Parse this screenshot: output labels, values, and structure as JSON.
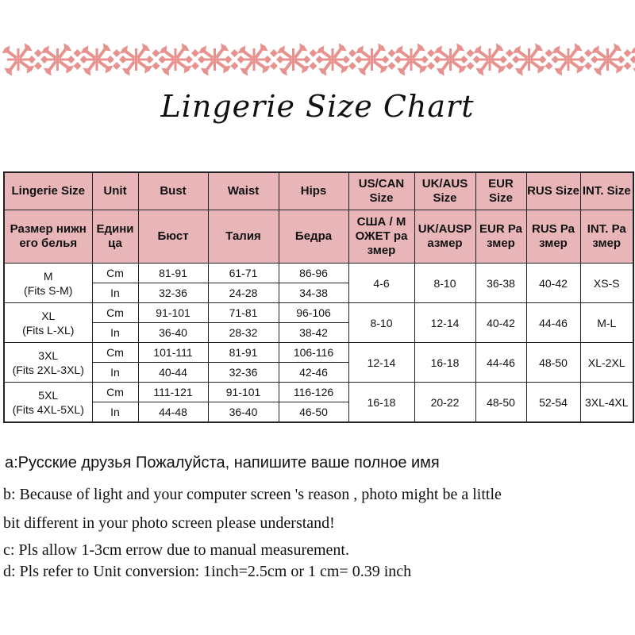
{
  "colors": {
    "header_bg": "#e8b5b8",
    "border_pattern": "#e8928f"
  },
  "title": "Lingerie Size  Chart",
  "table": {
    "header_en": [
      "Lingerie Size",
      "Unit",
      "Bust",
      "Waist",
      "Hips",
      "US/CAN Size",
      "UK/AUS Size",
      "EUR Size",
      "RUS Size",
      "INT. Size"
    ],
    "header_ru": [
      "Размер нижн его белья",
      "Едини ца",
      "Бюст",
      "Талия",
      "Бедра",
      "США / М ОЖЕТ ра змер",
      "UK/AUSP азмер",
      "EUR Ра змер",
      "RUS Ра змер",
      "INT. Ра змер"
    ],
    "rows": [
      {
        "size": "M",
        "fits": "(Fits S-M)",
        "cm": [
          "81-91",
          "61-71",
          "86-96"
        ],
        "in": [
          "32-36",
          "24-28",
          "34-38"
        ],
        "us": "4-6",
        "uk": "8-10",
        "eur": "36-38",
        "rus": "40-42",
        "int": "XS-S"
      },
      {
        "size": "XL",
        "fits": "(Fits L-XL)",
        "cm": [
          "91-101",
          "71-81",
          "96-106"
        ],
        "in": [
          "36-40",
          "28-32",
          "38-42"
        ],
        "us": "8-10",
        "uk": "12-14",
        "eur": "40-42",
        "rus": "44-46",
        "int": "M-L"
      },
      {
        "size": "3XL",
        "fits": "(Fits 2XL-3XL)",
        "cm": [
          "101-111",
          "81-91",
          "106-116"
        ],
        "in": [
          "40-44",
          "32-36",
          "42-46"
        ],
        "us": "12-14",
        "uk": "16-18",
        "eur": "44-46",
        "rus": "48-50",
        "int": "XL-2XL"
      },
      {
        "size": "5XL",
        "fits": "(Fits 4XL-5XL)",
        "cm": [
          "111-121",
          "91-101",
          "116-126"
        ],
        "in": [
          "44-48",
          "36-40",
          "46-50"
        ],
        "us": "16-18",
        "uk": "20-22",
        "eur": "48-50",
        "rus": "52-54",
        "int": "3XL-4XL"
      }
    ],
    "unit_cm": "Cm",
    "unit_in": "In"
  },
  "notes": {
    "a": "a:Русские друзья Пожалуйста, напишите ваше полное имя",
    "b1": " b: Because of light and your computer screen 's reason , photo might be a little",
    "b2": "bit different in your photo screen please understand!",
    "c": " c: Pls allow 1-3cm errow due to manual measurement.",
    "d": "d: Pls refer to Unit conversion: 1inch=2.5cm or 1 cm= 0.39 inch"
  }
}
